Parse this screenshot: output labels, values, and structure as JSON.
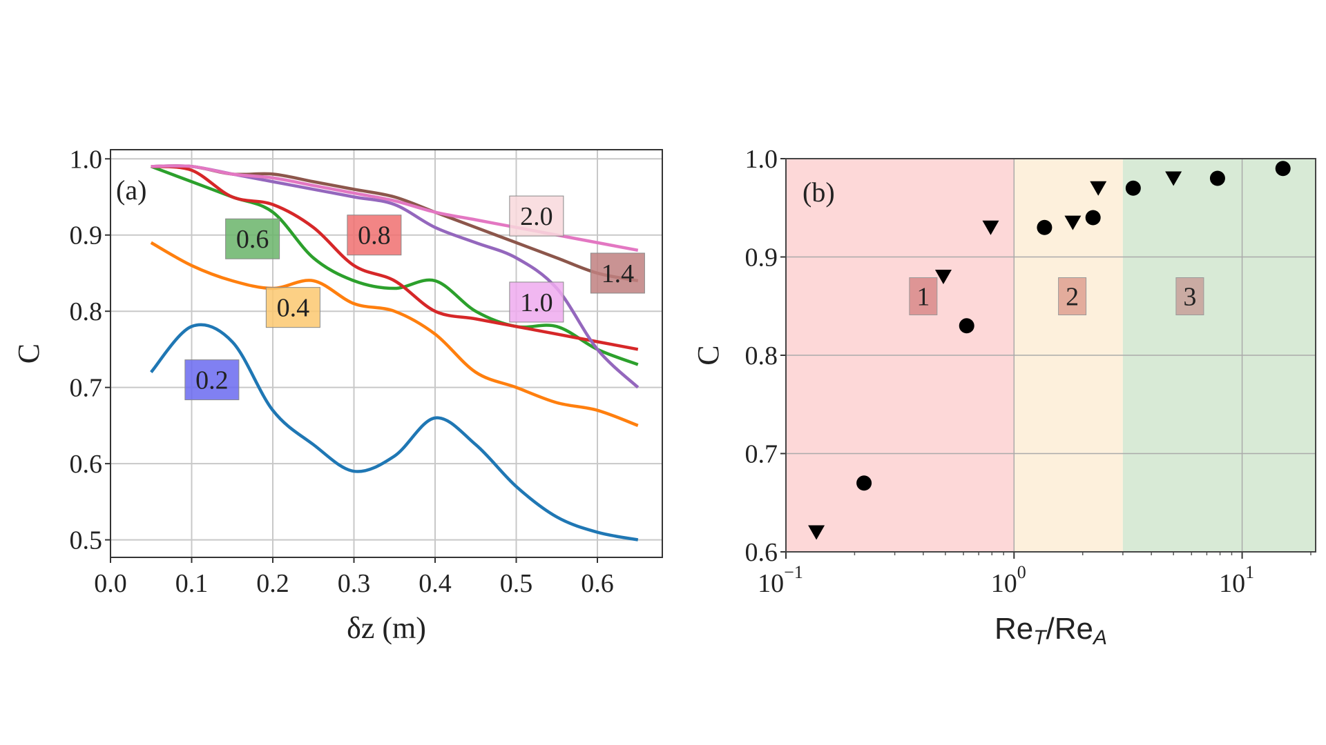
{
  "chart_data": [
    {
      "type": "line",
      "panel_label": "(a)",
      "xlabel": "δz (m)",
      "ylabel": "C",
      "xlim": [
        0.0,
        0.68
      ],
      "ylim": [
        0.477,
        1.012
      ],
      "xticks": [
        "0.0",
        "0.1",
        "0.2",
        "0.3",
        "0.4",
        "0.5",
        "0.6"
      ],
      "yticks": [
        "0.5",
        "0.6",
        "0.7",
        "0.8",
        "0.9",
        "1.0"
      ],
      "grid": true,
      "x": [
        0.05,
        0.1,
        0.15,
        0.2,
        0.25,
        0.3,
        0.35,
        0.4,
        0.45,
        0.5,
        0.55,
        0.6,
        0.65
      ],
      "series": [
        {
          "name": "0.2",
          "color": "#1f77b4",
          "label_bg": "#6a6af0",
          "label_at": [
            0.125,
            0.71
          ],
          "values": [
            0.72,
            0.78,
            0.76,
            0.67,
            0.625,
            0.59,
            0.61,
            0.66,
            0.625,
            0.57,
            0.53,
            0.51,
            0.5
          ]
        },
        {
          "name": "0.4",
          "color": "#ff7f0e",
          "label_bg": "#fcc870",
          "label_at": [
            0.225,
            0.805
          ],
          "values": [
            0.89,
            0.86,
            0.84,
            0.83,
            0.84,
            0.81,
            0.8,
            0.77,
            0.72,
            0.7,
            0.68,
            0.67,
            0.65
          ]
        },
        {
          "name": "0.6",
          "color": "#2ca02c",
          "label_bg": "#6ab46a",
          "label_at": [
            0.175,
            0.895
          ],
          "values": [
            0.99,
            0.97,
            0.95,
            0.93,
            0.87,
            0.84,
            0.83,
            0.84,
            0.8,
            0.78,
            0.78,
            0.75,
            0.73
          ]
        },
        {
          "name": "0.8",
          "color": "#d62728",
          "label_bg": "#f07070",
          "label_at": [
            0.325,
            0.9
          ],
          "values": [
            0.99,
            0.985,
            0.95,
            0.94,
            0.91,
            0.86,
            0.84,
            0.8,
            0.79,
            0.78,
            0.77,
            0.76,
            0.75
          ]
        },
        {
          "name": "1.0",
          "color": "#9467bd",
          "label_bg": "#eeaaee",
          "label_at": [
            0.525,
            0.812
          ],
          "values": [
            0.99,
            0.99,
            0.98,
            0.97,
            0.96,
            0.95,
            0.94,
            0.91,
            0.89,
            0.87,
            0.83,
            0.75,
            0.7
          ]
        },
        {
          "name": "1.4",
          "color": "#8c564b",
          "label_bg": "#c08080",
          "label_at": [
            0.625,
            0.85
          ],
          "values": [
            0.99,
            0.99,
            0.98,
            0.98,
            0.97,
            0.96,
            0.95,
            0.93,
            0.91,
            0.89,
            0.87,
            0.85,
            0.84
          ]
        },
        {
          "name": "2.0",
          "color": "#e377c2",
          "label_bg": "#f8d8dc",
          "label_at": [
            0.525,
            0.925
          ],
          "values": [
            0.99,
            0.99,
            0.98,
            0.975,
            0.965,
            0.955,
            0.945,
            0.93,
            0.92,
            0.91,
            0.9,
            0.89,
            0.88
          ]
        }
      ]
    },
    {
      "type": "scatter",
      "panel_label": "(b)",
      "xlabel": "Re_T/Re_A",
      "xlabel_parts": [
        "Re",
        "T",
        "/Re",
        "A"
      ],
      "ylabel": "C",
      "xscale": "log",
      "xlim": [
        0.1,
        21
      ],
      "ylim": [
        0.6,
        1.0
      ],
      "xticks": [
        {
          "base": "10",
          "exp": "−1"
        },
        {
          "base": "10",
          "exp": "0"
        },
        {
          "base": "10",
          "exp": "1"
        }
      ],
      "yticks": [
        "0.6",
        "0.7",
        "0.8",
        "0.9",
        "1.0"
      ],
      "grid": true,
      "regions": [
        {
          "name": "1",
          "range": [
            0.1,
            1.0
          ],
          "color": "#fdd8d8",
          "label_bg": "#d88a8a",
          "label_at": [
            0.4,
            0.86
          ]
        },
        {
          "name": "2",
          "range": [
            1.0,
            3.0
          ],
          "color": "#fdf0dc",
          "label_bg": "#dea090",
          "label_at": [
            1.8,
            0.86
          ]
        },
        {
          "name": "3",
          "range": [
            3.0,
            21
          ],
          "color": "#d8ead6",
          "label_bg": "#c8a09a",
          "label_at": [
            5.9,
            0.86
          ]
        }
      ],
      "series": [
        {
          "name": "triangles",
          "marker": "v",
          "color": "#000000",
          "points": [
            [
              0.136,
              0.62
            ],
            [
              0.49,
              0.88
            ],
            [
              0.79,
              0.93
            ],
            [
              1.81,
              0.935
            ],
            [
              2.34,
              0.97
            ],
            [
              5.0,
              0.98
            ]
          ]
        },
        {
          "name": "circles",
          "marker": "o",
          "color": "#000000",
          "points": [
            [
              0.22,
              0.67
            ],
            [
              0.62,
              0.83
            ],
            [
              1.36,
              0.93
            ],
            [
              2.22,
              0.94
            ],
            [
              3.33,
              0.97
            ],
            [
              7.8,
              0.98
            ],
            [
              15.1,
              0.99
            ]
          ]
        }
      ]
    }
  ]
}
